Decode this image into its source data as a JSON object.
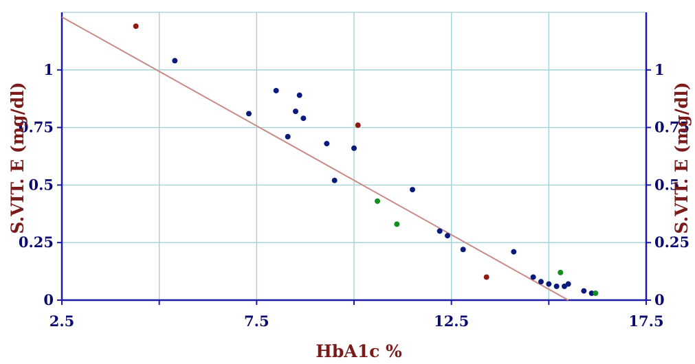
{
  "chart_data": {
    "type": "scatter",
    "title": "",
    "xlabel": "HbA1c %",
    "ylabel_left": "S.VIT. E (mg/dl)",
    "ylabel_right": "S.VIT. E (mg/dl)",
    "xlim": [
      2.5,
      17.5
    ],
    "ylim": [
      0,
      1.25
    ],
    "x_ticks": [
      "2.5",
      "7.5",
      "12.5",
      "17.5"
    ],
    "y_ticks": [
      "0",
      "0.25",
      "0.5",
      "0.75",
      "1"
    ],
    "grid": true,
    "legend": "none",
    "colors": {
      "background": "#ffffff",
      "grid": "#9fd0d3",
      "axis": "#1a1aa6",
      "tick_text": "#0a0a6e",
      "title_text": "#7a1a1a",
      "fit_line": "#c98a86"
    },
    "series": [
      {
        "color": "#0a1a7a",
        "points": [
          [
            5.4,
            1.04
          ],
          [
            8.0,
            0.91
          ],
          [
            8.6,
            0.89
          ],
          [
            7.3,
            0.81
          ],
          [
            8.5,
            0.82
          ],
          [
            8.7,
            0.79
          ],
          [
            8.3,
            0.71
          ],
          [
            9.3,
            0.68
          ],
          [
            10.0,
            0.66
          ],
          [
            9.5,
            0.52
          ],
          [
            11.5,
            0.48
          ],
          [
            12.2,
            0.3
          ],
          [
            12.4,
            0.28
          ],
          [
            12.8,
            0.22
          ],
          [
            14.1,
            0.21
          ],
          [
            14.6,
            0.1
          ],
          [
            14.8,
            0.08
          ],
          [
            15.0,
            0.07
          ],
          [
            15.2,
            0.06
          ],
          [
            15.4,
            0.06
          ],
          [
            15.5,
            0.07
          ],
          [
            15.9,
            0.04
          ],
          [
            16.1,
            0.03
          ]
        ]
      },
      {
        "color": "#0f8f1f",
        "points": [
          [
            10.6,
            0.43
          ],
          [
            11.1,
            0.33
          ],
          [
            15.3,
            0.12
          ],
          [
            16.2,
            0.03
          ]
        ]
      },
      {
        "color": "#8f1a14",
        "points": [
          [
            4.4,
            1.19
          ],
          [
            10.1,
            0.76
          ],
          [
            13.4,
            0.1
          ]
        ]
      }
    ],
    "fit_line": [
      [
        2.5,
        1.23
      ],
      [
        15.5,
        0.0
      ]
    ]
  }
}
